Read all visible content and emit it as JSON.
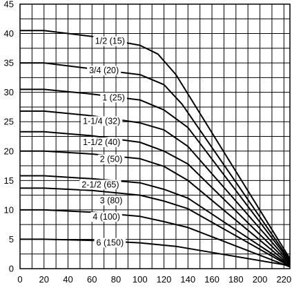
{
  "chart_data": {
    "type": "line",
    "title": "",
    "xlabel": "",
    "ylabel": "",
    "xlim": [
      0,
      225
    ],
    "ylim": [
      0,
      45
    ],
    "x_ticks": [
      0,
      20,
      40,
      60,
      80,
      100,
      120,
      140,
      160,
      180,
      200,
      220
    ],
    "y_ticks": [
      0,
      5,
      10,
      15,
      20,
      25,
      30,
      35,
      40,
      45
    ],
    "x_tick_labels": [
      "0",
      "20",
      "40",
      "60",
      "80",
      "100",
      "120",
      "140",
      "160",
      "180",
      "200",
      "220"
    ],
    "y_tick_labels": [
      "0",
      "5",
      "10",
      "15",
      "20",
      "25",
      "30",
      "35",
      "40",
      "45"
    ],
    "grid": true,
    "minor_grid_step_x": 10,
    "minor_grid_step_y": 2.5,
    "series": [
      {
        "name": "1/2 (15)",
        "label_at": [
          75,
          38.7
        ],
        "points": [
          [
            0,
            40.5
          ],
          [
            20,
            40.5
          ],
          [
            60,
            39.5
          ],
          [
            100,
            38
          ],
          [
            115,
            36.5
          ],
          [
            130,
            33
          ],
          [
            225,
            1.7
          ]
        ]
      },
      {
        "name": "3/4 (20)",
        "label_at": [
          70,
          33.7
        ],
        "points": [
          [
            0,
            35
          ],
          [
            20,
            35
          ],
          [
            60,
            34
          ],
          [
            100,
            33
          ],
          [
            120,
            31.3
          ],
          [
            135,
            28
          ],
          [
            225,
            1.4
          ]
        ]
      },
      {
        "name": "1 (25)",
        "label_at": [
          78,
          29.1
        ],
        "points": [
          [
            0,
            30.5
          ],
          [
            20,
            30.5
          ],
          [
            60,
            29.7
          ],
          [
            100,
            28.7
          ],
          [
            120,
            27
          ],
          [
            140,
            24
          ],
          [
            225,
            1.2
          ]
        ]
      },
      {
        "name": "1-1/4 (32)",
        "label_at": [
          68,
          25.1
        ],
        "points": [
          [
            0,
            26.8
          ],
          [
            20,
            26.8
          ],
          [
            60,
            26
          ],
          [
            100,
            24.8
          ],
          [
            120,
            23.6
          ],
          [
            140,
            20.8
          ],
          [
            225,
            1
          ]
        ]
      },
      {
        "name": "1-1/2 (40)",
        "label_at": [
          68,
          21.5
        ],
        "points": [
          [
            0,
            23.3
          ],
          [
            20,
            23.3
          ],
          [
            60,
            22.6
          ],
          [
            100,
            21.5
          ],
          [
            120,
            20
          ],
          [
            140,
            17.8
          ],
          [
            225,
            0.8
          ]
        ]
      },
      {
        "name": "2 (50)",
        "label_at": [
          76,
          18.6
        ],
        "points": [
          [
            0,
            20
          ],
          [
            20,
            20
          ],
          [
            60,
            19.5
          ],
          [
            100,
            18.7
          ],
          [
            120,
            17.4
          ],
          [
            140,
            15
          ],
          [
            225,
            0.6
          ]
        ]
      },
      {
        "name": "2-1/2 (65)",
        "label_at": [
          67,
          14.3
        ],
        "points": [
          [
            0,
            15.8
          ],
          [
            20,
            15.8
          ],
          [
            60,
            15.3
          ],
          [
            100,
            14.6
          ],
          [
            120,
            13.5
          ],
          [
            140,
            12
          ],
          [
            225,
            0.5
          ]
        ]
      },
      {
        "name": "3 (80)",
        "label_at": [
          76,
          11.6
        ],
        "points": [
          [
            0,
            13.7
          ],
          [
            20,
            13.7
          ],
          [
            60,
            13.3
          ],
          [
            100,
            12.5
          ],
          [
            120,
            11.5
          ],
          [
            140,
            10.2
          ],
          [
            225,
            0.4
          ]
        ]
      },
      {
        "name": "4 (100)",
        "label_at": [
          72,
          8.8
        ],
        "points": [
          [
            0,
            10
          ],
          [
            20,
            10
          ],
          [
            60,
            9.6
          ],
          [
            100,
            8.9
          ],
          [
            120,
            8
          ],
          [
            140,
            7
          ],
          [
            225,
            0.3
          ]
        ]
      },
      {
        "name": "6 (150)",
        "label_at": [
          75,
          4.4
        ],
        "points": [
          [
            0,
            5
          ],
          [
            20,
            5
          ],
          [
            60,
            4.8
          ],
          [
            100,
            4.4
          ],
          [
            130,
            3.8
          ],
          [
            225,
            0.5
          ]
        ]
      }
    ]
  }
}
